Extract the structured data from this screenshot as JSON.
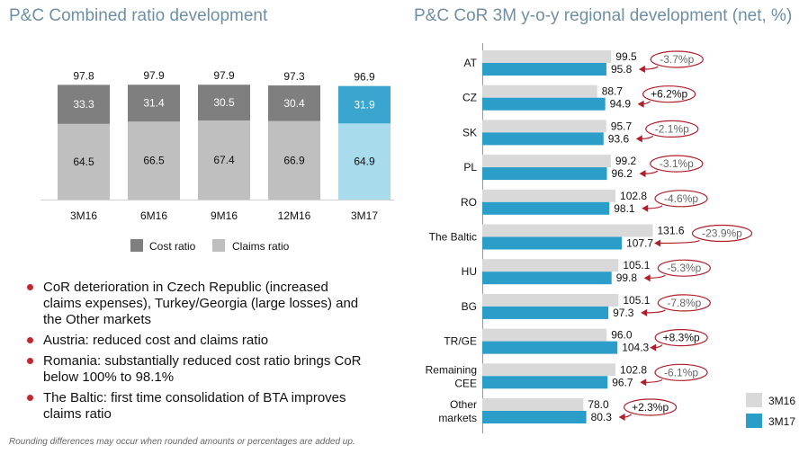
{
  "left_title": "P&C Combined ratio development",
  "right_title": "P&C CoR 3M y-o-y regional development (net, %)",
  "bullets": [
    "CoR deterioration in Czech Republic (increased claims expenses), Turkey/Georgia (large losses) and the Other markets",
    "Austria: reduced cost and claims ratio",
    "Romania: substantially reduced cost ratio brings CoR below 100% to 98.1%",
    "The Baltic: first time consolidation of BTA improves claims ratio"
  ],
  "footnote": "Rounding differences may occur when rounded amounts or percentages are added up.",
  "colors": {
    "cost_ratio": "#7f7f7f",
    "claims_ratio": "#bfbfbf",
    "cost_ratio_highlight": "#3aa6d0",
    "claims_ratio_highlight": "#a8dbec",
    "series_3M16": "#d9d9d9",
    "series_3M17": "#2a9dc9",
    "annotation": "#b01e2b"
  },
  "chart_data": [
    {
      "type": "bar",
      "stacked": true,
      "categories": [
        "3M16",
        "6M16",
        "9M16",
        "12M16",
        "3M17"
      ],
      "highlight_category": "3M17",
      "series": [
        {
          "name": "Claims ratio",
          "values": [
            64.5,
            66.5,
            67.4,
            66.9,
            64.9
          ]
        },
        {
          "name": "Cost ratio",
          "values": [
            33.3,
            31.4,
            30.5,
            30.4,
            31.9
          ]
        }
      ],
      "totals": [
        97.8,
        97.9,
        97.9,
        97.3,
        96.9
      ],
      "legend": [
        "Cost ratio",
        "Claims ratio"
      ],
      "legend_position": "bottom",
      "grid": false
    },
    {
      "type": "bar",
      "orientation": "horizontal",
      "categories": [
        "AT",
        "CZ",
        "SK",
        "PL",
        "RO",
        "The Baltic",
        "HU",
        "BG",
        "TR/GE",
        "Remaining CEE",
        "Other markets"
      ],
      "series": [
        {
          "name": "3M16",
          "values": [
            99.5,
            88.7,
            95.7,
            99.2,
            102.8,
            131.6,
            105.1,
            105.1,
            96.0,
            102.8,
            78.0
          ]
        },
        {
          "name": "3M17",
          "values": [
            95.8,
            94.9,
            93.6,
            96.2,
            98.1,
            107.7,
            99.8,
            97.3,
            104.3,
            96.7,
            80.3
          ]
        }
      ],
      "changes": [
        "-3.7%p",
        "+6.2%p",
        "-2.1%p",
        "-3.1%p",
        "-4.6%p",
        "-23.9%p",
        "-5.3%p",
        "-7.8%p",
        "+8.3%p",
        "-6.1%p",
        "+2.3%p"
      ],
      "legend": [
        "3M16",
        "3M17"
      ],
      "legend_position": "bottom-right",
      "grid": false
    }
  ]
}
